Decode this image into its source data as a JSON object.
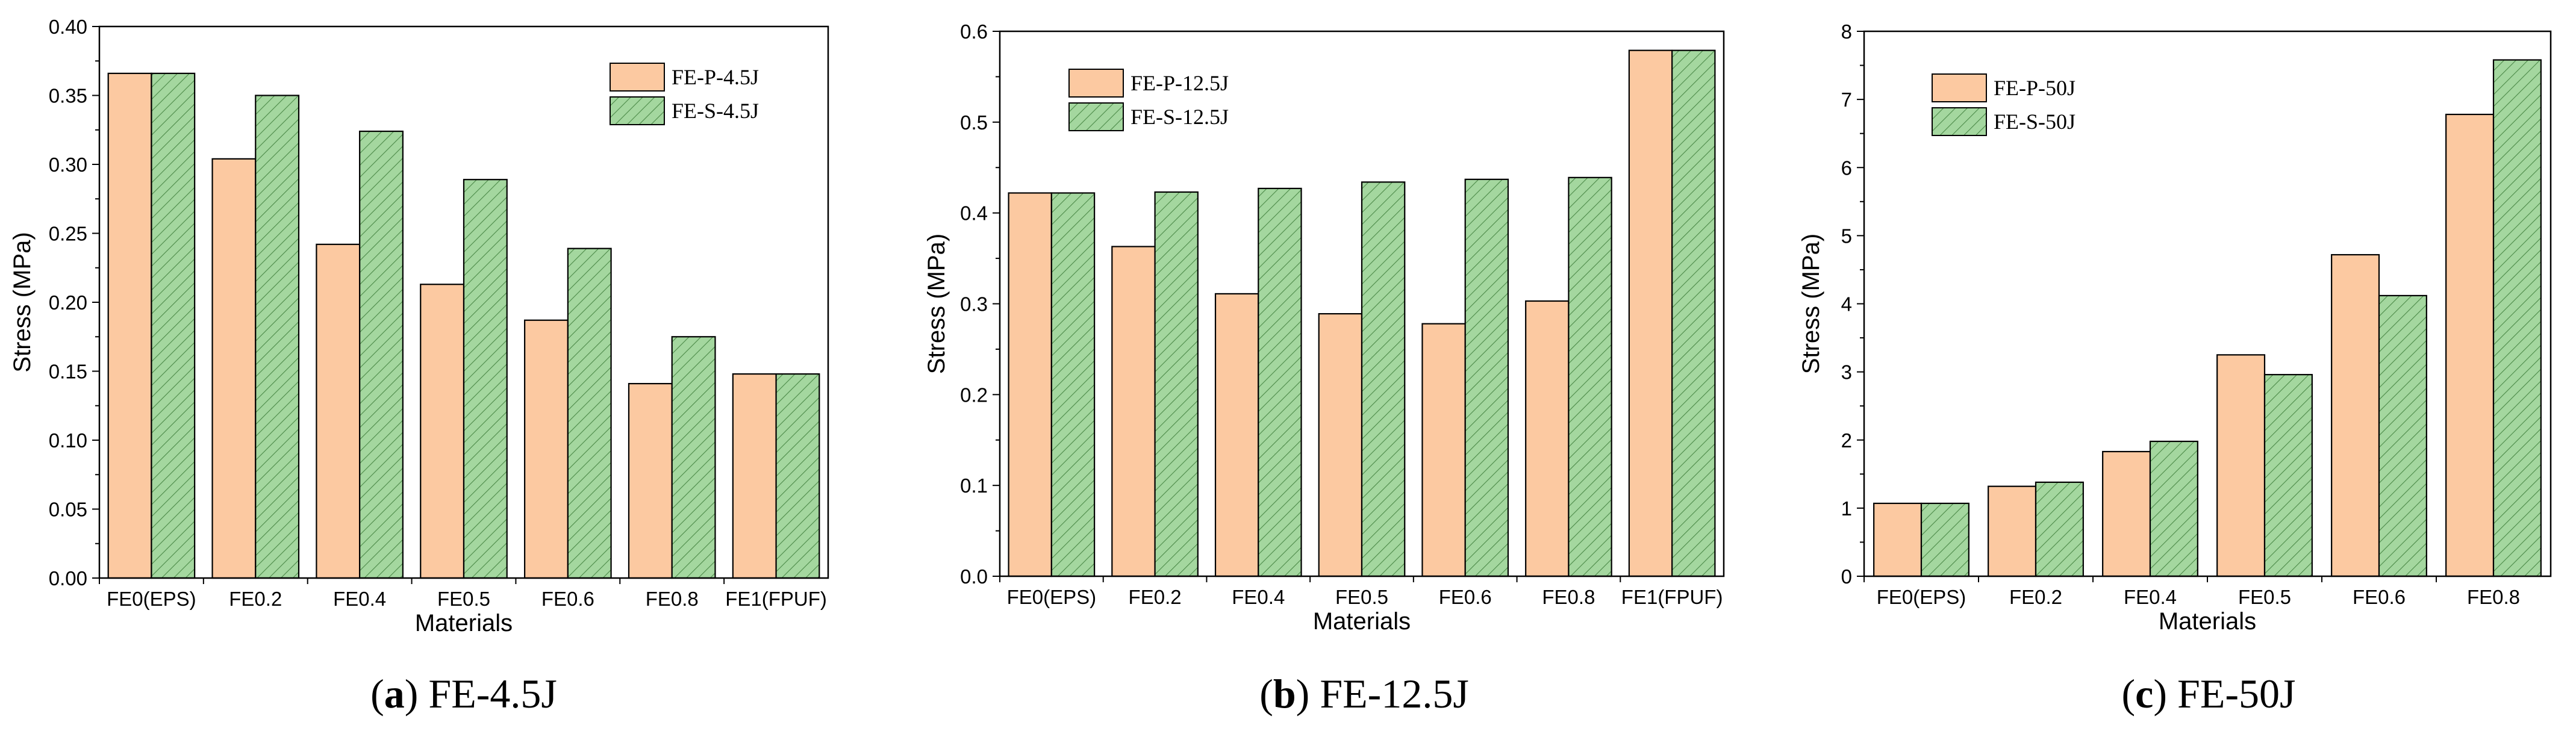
{
  "colors": {
    "fe_p": "#fcc9a1",
    "fe_s_bg": "#a4d79f",
    "fe_s_hatch": "#4c8a48",
    "axis": "#000000"
  },
  "chart_data": [
    {
      "type": "bar",
      "caption_letter": "a",
      "caption_text": "FE-4.5J",
      "xlabel": "Materials",
      "ylabel": "Stress (MPa)",
      "ylim": [
        0,
        0.4
      ],
      "yticks": [
        "0.00",
        "0.05",
        "0.10",
        "0.15",
        "0.20",
        "0.25",
        "0.30",
        "0.35",
        "0.40"
      ],
      "legend_position": "top-right",
      "categories": [
        "FE0(EPS)",
        "FE0.2",
        "FE0.4",
        "FE0.5",
        "FE0.6",
        "FE0.8",
        "FE1(FPUF)"
      ],
      "series": [
        {
          "name": "FE-P-4.5J",
          "values": [
            0.366,
            0.304,
            0.242,
            0.213,
            0.187,
            0.141,
            0.148
          ]
        },
        {
          "name": "FE-S-4.5J",
          "values": [
            0.366,
            0.35,
            0.324,
            0.289,
            0.239,
            0.175,
            0.148
          ]
        }
      ]
    },
    {
      "type": "bar",
      "caption_letter": "b",
      "caption_text": "FE-12.5J",
      "xlabel": "Materials",
      "ylabel": "Stress (MPa)",
      "ylim": [
        0,
        0.6
      ],
      "yticks": [
        "0.0",
        "0.1",
        "0.2",
        "0.3",
        "0.4",
        "0.5",
        "0.6"
      ],
      "legend_position": "top-left",
      "categories": [
        "FE0(EPS)",
        "FE0.2",
        "FE0.4",
        "FE0.5",
        "FE0.6",
        "FE0.8",
        "FE1(FPUF)"
      ],
      "series": [
        {
          "name": "FE-P-12.5J",
          "values": [
            0.422,
            0.363,
            0.311,
            0.289,
            0.278,
            0.303,
            0.579
          ]
        },
        {
          "name": "FE-S-12.5J",
          "values": [
            0.422,
            0.423,
            0.427,
            0.434,
            0.437,
            0.439,
            0.579
          ]
        }
      ]
    },
    {
      "type": "bar",
      "caption_letter": "c",
      "caption_text": "FE-50J",
      "xlabel": "Materials",
      "ylabel": "Stress (MPa)",
      "ylim": [
        0,
        8
      ],
      "yticks": [
        "0",
        "1",
        "2",
        "3",
        "4",
        "5",
        "6",
        "7",
        "8"
      ],
      "legend_position": "top-left",
      "categories": [
        "FE0(EPS)",
        "FE0.2",
        "FE0.4",
        "FE0.5",
        "FE0.6",
        "FE0.8"
      ],
      "series": [
        {
          "name": "FE-P-50J",
          "values": [
            1.07,
            1.32,
            1.83,
            3.25,
            4.72,
            6.78
          ]
        },
        {
          "name": "FE-S-50J",
          "values": [
            1.07,
            1.38,
            1.98,
            2.96,
            4.12,
            7.58
          ]
        }
      ]
    }
  ]
}
